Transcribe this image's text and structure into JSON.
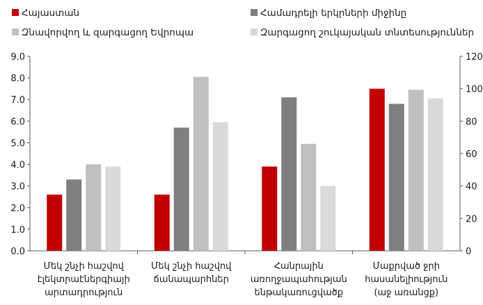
{
  "chart_data": {
    "type": "bar",
    "legend": [
      {
        "label": "Հայաստան",
        "color": "#c00000"
      },
      {
        "label": "Համադրելի երկրների միջինը",
        "color": "#7f7f7f"
      },
      {
        "label": "Զնավորվող և զարգացող Եվրոպա",
        "color": "#bfbfbf"
      },
      {
        "label": "Զարգացող շուկայական տնտեսություններ",
        "color": "#d9d9d9"
      }
    ],
    "legend_placement": "top",
    "categories": [
      [
        "Մեկ շնչի հաշվով",
        "էլեկտրաէներգիայի",
        "արտադրություն"
      ],
      [
        "Մեկ շնչի հաշվով",
        "ճանապարհներ"
      ],
      [
        "Հանրային",
        "առողջապահության",
        "ենթակառուցվածք"
      ],
      [
        "Մաքրված ջրի",
        "հասանելիություն",
        "(աջ առանցք)"
      ]
    ],
    "series": [
      {
        "name": "Հայաստան",
        "color": "#c00000",
        "values": [
          2.6,
          2.6,
          3.9,
          7.5
        ]
      },
      {
        "name": "Համադրելի երկրների միջինը",
        "color": "#7f7f7f",
        "values": [
          3.3,
          5.7,
          7.1,
          6.8
        ]
      },
      {
        "name": "Զնավորվող և զարգացող Եվրոպա",
        "color": "#bfbfbf",
        "values": [
          4.0,
          8.05,
          4.95,
          7.45
        ]
      },
      {
        "name": "Զարգացող շուկայական տնտեսություններ",
        "color": "#d9d9d9",
        "values": [
          3.9,
          5.95,
          3.0,
          7.05
        ]
      }
    ],
    "right_axis_category_index": 3,
    "y_left": {
      "min": 0,
      "max": 9,
      "ticks": [
        "0.0",
        "1.0",
        "2.0",
        "3.0",
        "4.0",
        "5.0",
        "6.0",
        "7.0",
        "8.0",
        "9.0"
      ]
    },
    "y_right": {
      "min": 0,
      "max": 120,
      "ticks": [
        "0",
        "20",
        "40",
        "60",
        "80",
        "100",
        "120"
      ]
    },
    "grid": false
  }
}
